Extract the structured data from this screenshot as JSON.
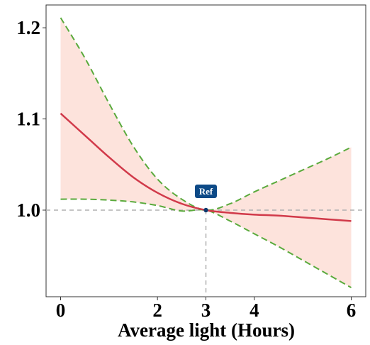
{
  "chart_data": {
    "type": "line",
    "title": "",
    "xlabel": "Average light (Hours)",
    "ylabel": "",
    "xlim": [
      -0.3,
      6.3
    ],
    "ylim": [
      0.905,
      1.225
    ],
    "x_ticks": [
      0,
      2,
      3,
      4,
      6
    ],
    "y_ticks": [
      1.0,
      1.1,
      1.2
    ],
    "x_tick_labels": [
      "0",
      "2",
      "3",
      "4",
      "6"
    ],
    "y_tick_labels": [
      "1.0",
      "1.1",
      "1.2"
    ],
    "reference": {
      "x": 3,
      "y": 1.0,
      "label": "Ref"
    },
    "grid": false,
    "series": [
      {
        "role": "estimate",
        "style": "solid",
        "color": "#d13a4a",
        "x": [
          0,
          0.5,
          1,
          1.5,
          2,
          2.5,
          3,
          3.5,
          4,
          4.5,
          5,
          5.5,
          6
        ],
        "y": [
          1.106,
          1.082,
          1.058,
          1.036,
          1.019,
          1.007,
          1.0,
          0.997,
          0.995,
          0.994,
          0.992,
          0.99,
          0.988
        ]
      },
      {
        "role": "upper bound",
        "style": "dashed",
        "color": "#5aaa3c",
        "x": [
          0,
          0.5,
          1,
          1.5,
          2,
          2.5,
          3,
          3.5,
          4,
          4.5,
          5,
          5.5,
          6
        ],
        "y": [
          1.211,
          1.167,
          1.117,
          1.07,
          1.034,
          1.012,
          1.0,
          1.007,
          1.02,
          1.032,
          1.044,
          1.056,
          1.069
        ]
      },
      {
        "role": "lower bound",
        "style": "dashed",
        "color": "#5aaa3c",
        "x": [
          0,
          0.5,
          1,
          1.5,
          2,
          2.5,
          3,
          3.5,
          4,
          4.5,
          5,
          5.5,
          6
        ],
        "y": [
          1.012,
          1.012,
          1.011,
          1.009,
          1.005,
          0.999,
          1.0,
          0.988,
          0.974,
          0.96,
          0.945,
          0.93,
          0.915
        ]
      }
    ],
    "colors": {
      "ribbon": "#fde3dc",
      "estimate": "#d13a4a",
      "bounds": "#5aaa3c",
      "reference_line": "#b0b0b0",
      "ref_badge": "#0d4a87",
      "ref_point": "#0d3a6e"
    }
  }
}
